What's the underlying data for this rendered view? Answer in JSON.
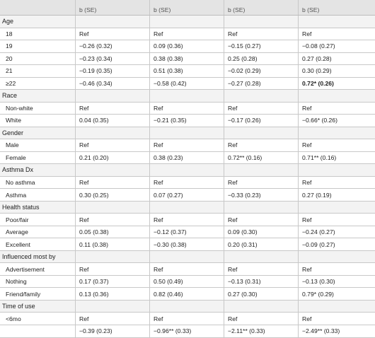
{
  "table": {
    "header": [
      "b (SE)",
      "b (SE)",
      "b (SE)",
      "b (SE)"
    ],
    "rows": [
      {
        "label": "Age"
      },
      {
        "label": "18",
        "cells": [
          "Ref",
          "Ref",
          "Ref",
          "Ref"
        ]
      },
      {
        "label": "19",
        "cells": [
          "−0.26 (0.32)",
          "0.09 (0.36)",
          "−0.15 (0.27)",
          "−0.08 (0.27)"
        ]
      },
      {
        "label": "20",
        "cells": [
          "−0.23 (0.34)",
          "0.38 (0.38)",
          "0.25 (0.28)",
          "0.27 (0.28)"
        ]
      },
      {
        "label": "21",
        "cells": [
          "−0.19 (0.35)",
          "0.51 (0.38)",
          "−0.02 (0.29)",
          "0.30 (0.29)"
        ]
      },
      {
        "label": "≥22",
        "cells": [
          "−0.46 (0.34)",
          "−0.58 (0.42)",
          "−0.27 (0.28)",
          "0.72* (0.26)"
        ],
        "bold_cells": [
          3
        ]
      },
      {
        "label": "Race"
      },
      {
        "label": "Non-white",
        "cells": [
          "Ref",
          "Ref",
          "Ref",
          "Ref"
        ]
      },
      {
        "label": "White",
        "cells": [
          "0.04 (0.35)",
          "−0.21 (0.35)",
          "−0.17 (0.26)",
          "−0.66* (0.26)"
        ]
      },
      {
        "label": "Gender"
      },
      {
        "label": "Male",
        "cells": [
          "Ref",
          "Ref",
          "Ref",
          "Ref"
        ]
      },
      {
        "label": "Female",
        "cells": [
          "0.21 (0.20)",
          "0.38 (0.23)",
          "0.72** (0.16)",
          "0.71** (0.16)"
        ]
      },
      {
        "label": "Asthma Dx"
      },
      {
        "label": "No asthma",
        "cells": [
          "Ref",
          "Ref",
          "Ref",
          "Ref"
        ]
      },
      {
        "label": "Asthma",
        "cells": [
          "0.30 (0.25)",
          "0.07 (0.27)",
          "−0.33 (0.23)",
          "0.27 (0.19)"
        ]
      },
      {
        "label": "Health status"
      },
      {
        "label": "Poor/fair",
        "cells": [
          "Ref",
          "Ref",
          "Ref",
          "Ref"
        ]
      },
      {
        "label": "Average",
        "cells": [
          "0.05 (0.38)",
          "−0.12 (0.37)",
          "0.09 (0.30)",
          "−0.24 (0.27)"
        ]
      },
      {
        "label": "Excellent",
        "cells": [
          "0.11 (0.38)",
          "−0.30 (0.38)",
          "0.20 (0.31)",
          "−0.09 (0.27)"
        ]
      },
      {
        "label": "Influenced most by"
      },
      {
        "label": "Advertisement",
        "cells": [
          "Ref",
          "Ref",
          "Ref",
          "Ref"
        ]
      },
      {
        "label": "Nothing",
        "cells": [
          "0.17 (0.37)",
          "0.50 (0.49)",
          "−0.13 (0.31)",
          "−0.13 (0.30)"
        ]
      },
      {
        "label": "Friend/family",
        "cells": [
          "0.13 (0.36)",
          "0.82 (0.46)",
          "0.27 (0.30)",
          "0.79* (0.29)"
        ]
      },
      {
        "label": "Time of use"
      },
      {
        "label": "<6mo",
        "cells": [
          "Ref",
          "Ref",
          "Ref",
          "Ref"
        ]
      },
      {
        "cells": [
          "−0.39 (0.23)",
          "−0.96** (0.33)",
          "−2.11** (0.33)",
          "−2.49** (0.33)"
        ]
      }
    ]
  }
}
